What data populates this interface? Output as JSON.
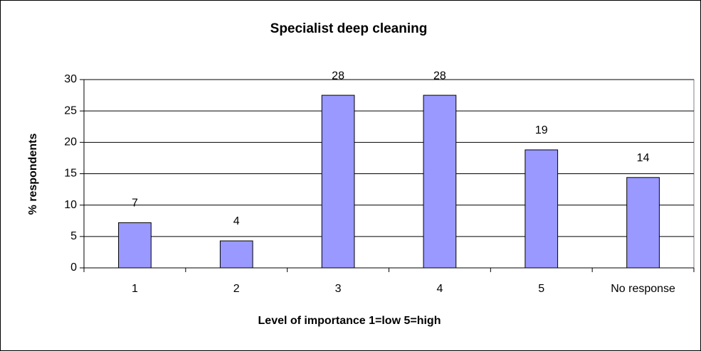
{
  "chart_data": {
    "type": "bar",
    "title": "Specialist deep cleaning",
    "x_label": "Level of importance 1=low 5=high",
    "y_label": "% respondents",
    "categories": [
      "1",
      "2",
      "3",
      "4",
      "5",
      "No response"
    ],
    "values": [
      7.2,
      4.3,
      27.5,
      27.5,
      18.8,
      14.4
    ],
    "value_labels": [
      "7",
      "4",
      "28",
      "28",
      "19",
      "14"
    ],
    "color": "#9999ff",
    "ylim": [
      0,
      30
    ],
    "yticks": [
      0,
      5,
      10,
      15,
      20,
      25,
      30
    ],
    "grid": true
  }
}
